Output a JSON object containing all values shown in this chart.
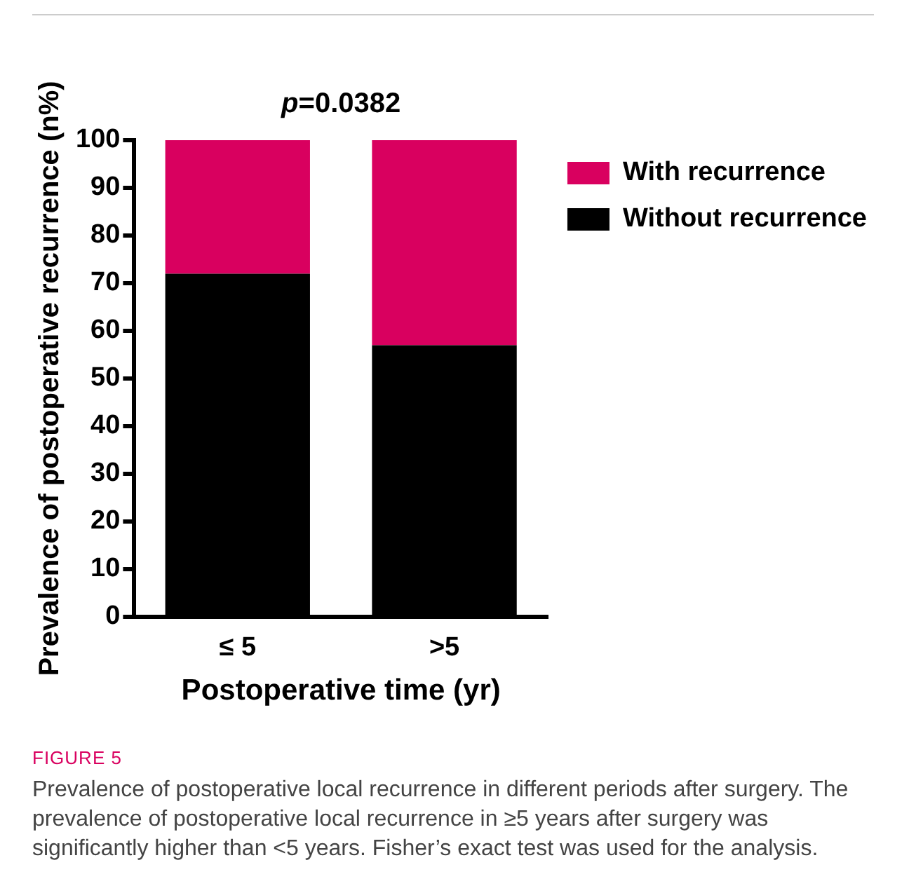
{
  "chart_data": {
    "type": "bar",
    "title": "p=0.0382",
    "xlabel": "Postoperative time (yr)",
    "ylabel": "Prevalence of postoperative recurrence (n%)",
    "categories": [
      "≤ 5",
      ">5"
    ],
    "stacked": true,
    "series": [
      {
        "name": "Without recurrence",
        "color": "#000000",
        "values": [
          72,
          57
        ]
      },
      {
        "name": "With recurrence",
        "color": "#d9005f",
        "values": [
          28,
          43
        ]
      }
    ],
    "ylim": [
      0,
      100
    ],
    "yticks": [
      0,
      10,
      20,
      30,
      40,
      50,
      60,
      70,
      80,
      90,
      100
    ],
    "grid": false,
    "legend": "top right",
    "annotations": [
      "FIGURE 5",
      "Prevalence of postoperative local recurrence in different periods after surgery. The prevalence of postoperative local recurrence in ≥5 years after surgery was significantly higher than <5 years. Fisher’s exact test was used for the analysis."
    ]
  }
}
